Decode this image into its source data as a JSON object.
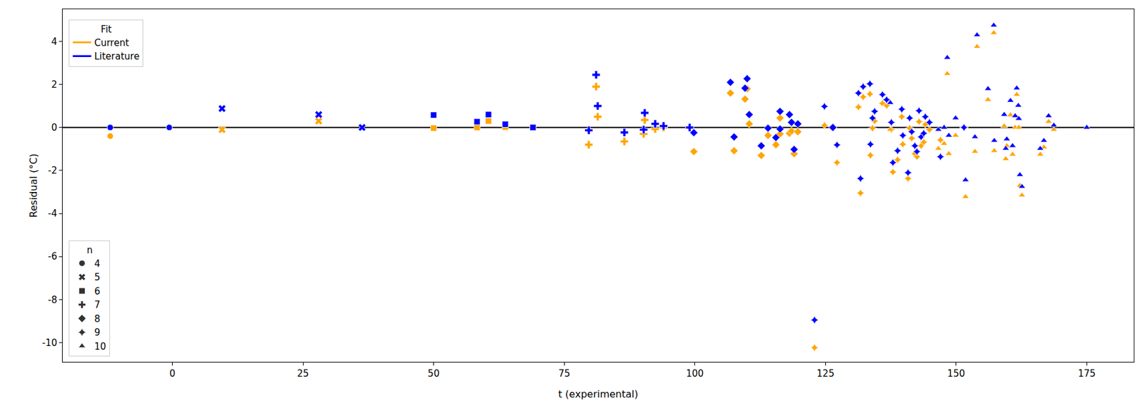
{
  "chart_data": {
    "type": "scatter",
    "x_label": "t (experimental)",
    "y_label": "Residual (°C)",
    "legend_title": "Fit",
    "legend": "upper left",
    "grid": false,
    "reference_line": 0,
    "xlim": [
      -21,
      184
    ],
    "ylim": [
      -10.9,
      5.5
    ],
    "xticks": [
      0,
      25,
      50,
      75,
      100,
      125,
      150,
      175
    ],
    "yticks": [
      -10,
      -8,
      -6,
      -4,
      -2,
      0,
      2,
      4
    ],
    "x": [
      -11.9,
      -0.6,
      9.5,
      28,
      36.3,
      50,
      58.3,
      60.5,
      63.7,
      69,
      79.7,
      81.1,
      81.4,
      86.5,
      90.4,
      90.2,
      92.4,
      94,
      99,
      99.8,
      106.8,
      107.5,
      109.6,
      110,
      110.4,
      112.7,
      114,
      115.5,
      116.3,
      116.3,
      118.1,
      118.5,
      119,
      119.7,
      122.9,
      124.8,
      126.4,
      127.2,
      131.3,
      131.7,
      132.2,
      133.5,
      133.6,
      134,
      134.4,
      135.9,
      136.7,
      137.4,
      137.6,
      137.9,
      138.8,
      139.6,
      139.8,
      140.8,
      141.1,
      141.5,
      142.1,
      142.5,
      142.9,
      143.3,
      143.8,
      144.1,
      144.9,
      146.6,
      147,
      147.7,
      148.3,
      148.6,
      149.9,
      151.5,
      151.8,
      153.6,
      154,
      156.1,
      157.3,
      157.2,
      159.2,
      159.5,
      159.7,
      160.4,
      160.8,
      161.3,
      161.6,
      161.9,
      162,
      162.2,
      162.6,
      166.1,
      166.8,
      167.7,
      168.7,
      175
    ],
    "n": [
      4,
      4,
      5,
      5,
      5,
      6,
      6,
      6,
      6,
      6,
      7,
      7,
      7,
      7,
      7,
      7,
      7,
      7,
      7,
      8,
      8,
      8,
      8,
      8,
      8,
      8,
      8,
      8,
      8,
      8,
      8,
      8,
      8,
      8,
      9,
      9,
      8,
      9,
      9,
      9,
      9,
      9,
      9,
      9,
      9,
      9,
      9,
      10,
      9,
      9,
      9,
      9,
      9,
      9,
      9,
      9,
      9,
      9,
      9,
      9,
      9,
      9,
      9,
      10,
      9,
      10,
      10,
      10,
      10,
      9,
      10,
      10,
      10,
      10,
      10,
      10,
      10,
      10,
      10,
      10,
      10,
      10,
      10,
      10,
      10,
      10,
      10,
      10,
      10,
      10,
      10,
      10
    ],
    "series": [
      {
        "name": "Current",
        "color": "orange",
        "values": [
          -0.4,
          0,
          -0.1,
          0.3,
          0,
          -0.03,
          0,
          0.3,
          0.02,
          0,
          -0.8,
          1.9,
          0.5,
          -0.65,
          0.35,
          -0.3,
          -0.07,
          0,
          0,
          -1.12,
          1.6,
          -1.08,
          1.32,
          1.8,
          0.17,
          -1.3,
          -0.37,
          -0.8,
          0.44,
          -0.3,
          -0.27,
          -0.17,
          -1.22,
          -0.2,
          -10.24,
          0.1,
          0,
          -1.63,
          0.95,
          -3.05,
          1.42,
          1.56,
          -1.29,
          -0.03,
          0.3,
          1.12,
          1.02,
          -0.1,
          -0.1,
          -2.07,
          -1.5,
          0.5,
          -0.78,
          -2.37,
          -0.03,
          -0.5,
          -1.22,
          -1.36,
          0.27,
          -0.85,
          -0.68,
          0.14,
          -0.1,
          -0.98,
          -0.58,
          -0.75,
          2.5,
          -1.22,
          -0.37,
          0,
          -3.22,
          -1.12,
          3.76,
          1.29,
          -1.08,
          4.4,
          0.07,
          -1.46,
          -0.85,
          0.58,
          -1.25,
          0,
          1.53,
          0.44,
          0,
          -2.7,
          -3.15,
          -1.25,
          -0.92,
          0.27,
          -0.1,
          0
        ]
      },
      {
        "name": "Literature",
        "color": "blue",
        "values": [
          0,
          0,
          0.88,
          0.6,
          0,
          0.58,
          0.27,
          0.6,
          0.15,
          0,
          -0.13,
          2.45,
          1.0,
          -0.23,
          0.68,
          -0.1,
          0.17,
          0.07,
          0,
          -0.24,
          2.1,
          -0.44,
          1.83,
          2.27,
          0.6,
          -0.85,
          -0.03,
          -0.47,
          0.75,
          -0.07,
          0.6,
          0.24,
          -1.02,
          0.17,
          -8.95,
          0.98,
          0,
          -0.81,
          1.6,
          -2.37,
          1.9,
          2.03,
          -0.78,
          0.44,
          0.75,
          1.53,
          1.29,
          1.15,
          0.24,
          -1.63,
          -1.08,
          0.85,
          -0.37,
          -2.1,
          0.44,
          -0.2,
          -0.85,
          -1.12,
          0.78,
          -0.44,
          -0.27,
          0.5,
          0.24,
          -0.1,
          -1.36,
          0,
          3.25,
          -0.37,
          0.44,
          0,
          -2.44,
          -0.44,
          4.3,
          1.8,
          -0.61,
          4.75,
          0.6,
          -0.98,
          -0.54,
          1.25,
          -0.85,
          0.54,
          1.83,
          1.02,
          0.41,
          -2.2,
          -2.75,
          -0.98,
          -0.61,
          0.54,
          0.1,
          0
        ]
      }
    ],
    "n_legend": {
      "title": "n",
      "groups": [
        {
          "n": 4,
          "marker": "circle"
        },
        {
          "n": 5,
          "marker": "x"
        },
        {
          "n": 6,
          "marker": "square"
        },
        {
          "n": 7,
          "marker": "cross"
        },
        {
          "n": 8,
          "marker": "diamond"
        },
        {
          "n": 9,
          "marker": "star-diamond"
        },
        {
          "n": 10,
          "marker": "triangle-up"
        }
      ]
    }
  }
}
